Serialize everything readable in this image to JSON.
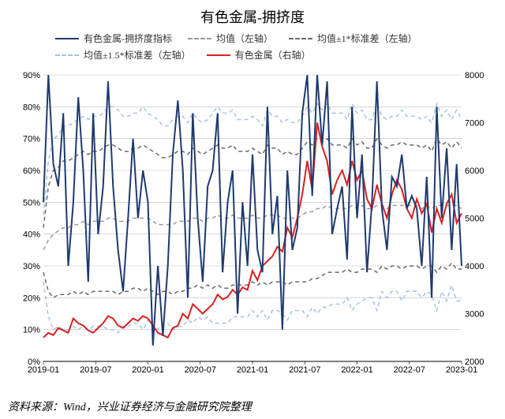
{
  "title": "有色金属-拥挤度",
  "source": "资料来源：Wind，兴业证券经济与金融研究院整理",
  "legend": {
    "items": [
      {
        "label": "有色金属-拥挤度指标",
        "color": "#1f3a6e",
        "dash": "solid",
        "width": 2
      },
      {
        "label": "均值（左轴）",
        "color": "#9a9a9a",
        "dash": "dashed",
        "width": 1.5
      },
      {
        "label": "均值±1*标准差（左轴）",
        "color": "#6a6a6a",
        "dash": "dashed",
        "width": 1.5
      },
      {
        "label": "均值±1.5*标准差（左轴）",
        "color": "#a8c3e0",
        "dash": "dashed",
        "width": 1.5
      },
      {
        "label": "有色金属（右轴）",
        "color": "#d92121",
        "dash": "solid",
        "width": 2
      }
    ]
  },
  "chart": {
    "type": "line",
    "background_color": "#ffffff",
    "grid_color": "#bfbfbf",
    "axis_color": "#000000",
    "left_axis": {
      "min": 0,
      "max": 90,
      "step": 10,
      "suffix": "%"
    },
    "right_axis": {
      "min": 2000,
      "max": 8000,
      "step": 1000
    },
    "x_labels": [
      "2019-01",
      "2019-07",
      "2020-01",
      "2020-07",
      "2021-01",
      "2021-07",
      "2022-01",
      "2022-07",
      "2023-01"
    ],
    "series": {
      "indicator": {
        "color": "#1f3a6e",
        "dash": "solid",
        "width": 2,
        "axis": "left",
        "values": [
          50,
          90,
          62,
          55,
          78,
          30,
          50,
          83,
          60,
          25,
          78,
          40,
          55,
          88,
          55,
          35,
          22,
          45,
          70,
          45,
          60,
          50,
          5,
          30,
          8,
          30,
          65,
          82,
          60,
          20,
          78,
          45,
          25,
          55,
          60,
          78,
          28,
          50,
          60,
          15,
          50,
          30,
          65,
          35,
          28,
          80,
          40,
          52,
          10,
          60,
          35,
          42,
          78,
          90,
          52,
          90,
          68,
          88,
          40,
          48,
          55,
          32,
          80,
          45,
          65,
          28,
          50,
          88,
          48,
          35,
          58,
          55,
          65,
          48,
          52,
          48,
          30,
          58,
          20,
          80,
          45,
          67,
          35,
          62,
          30
        ]
      },
      "mean": {
        "color": "#9a9a9a",
        "dash": "dashed",
        "width": 1.5,
        "axis": "left",
        "values": [
          35,
          38,
          40,
          41,
          42,
          42,
          43,
          43,
          44,
          43,
          44,
          44,
          44,
          45,
          45,
          44,
          44,
          44,
          45,
          45,
          45,
          45,
          44,
          43,
          43,
          43,
          43,
          44,
          44,
          44,
          45,
          45,
          44,
          45,
          45,
          46,
          45,
          45,
          46,
          45,
          45,
          45,
          46,
          45,
          45,
          46,
          46,
          46,
          45,
          45,
          45,
          45,
          46,
          47,
          47,
          48,
          48,
          49,
          48,
          48,
          48,
          48,
          49,
          48,
          49,
          48,
          48,
          49,
          49,
          48,
          49,
          49,
          49,
          49,
          49,
          49,
          48,
          49,
          48,
          49,
          49,
          49,
          49,
          49,
          48
        ]
      },
      "sd_upper": {
        "color": "#6a6a6a",
        "dash": "dashed",
        "width": 1.5,
        "axis": "left",
        "values": [
          42,
          55,
          60,
          61,
          63,
          63,
          64,
          65,
          66,
          65,
          66,
          66,
          67,
          68,
          68,
          67,
          66,
          66,
          67,
          67,
          68,
          67,
          66,
          65,
          64,
          64,
          65,
          66,
          66,
          65,
          67,
          66,
          65,
          66,
          67,
          68,
          67,
          67,
          68,
          66,
          66,
          66,
          67,
          66,
          65,
          68,
          67,
          67,
          65,
          66,
          65,
          65,
          67,
          69,
          68,
          70,
          69,
          70,
          68,
          68,
          68,
          67,
          70,
          68,
          69,
          67,
          67,
          70,
          68,
          67,
          68,
          68,
          69,
          68,
          68,
          68,
          67,
          68,
          66,
          70,
          68,
          69,
          67,
          69,
          67
        ]
      },
      "sd_lower": {
        "color": "#6a6a6a",
        "dash": "dashed",
        "width": 1.5,
        "axis": "left",
        "values": [
          28,
          22,
          20,
          21,
          21,
          21,
          22,
          21,
          22,
          21,
          22,
          22,
          22,
          22,
          22,
          21,
          22,
          22,
          23,
          23,
          22,
          23,
          22,
          21,
          22,
          22,
          21,
          22,
          22,
          23,
          23,
          24,
          23,
          24,
          23,
          24,
          23,
          23,
          24,
          24,
          24,
          24,
          25,
          24,
          25,
          24,
          25,
          25,
          25,
          24,
          25,
          25,
          25,
          25,
          26,
          26,
          27,
          28,
          28,
          28,
          28,
          29,
          28,
          28,
          29,
          29,
          29,
          28,
          30,
          29,
          30,
          30,
          29,
          30,
          30,
          30,
          29,
          30,
          30,
          28,
          30,
          29,
          31,
          29,
          29
        ]
      },
      "sd15_upper": {
        "color": "#a8c3e0",
        "dash": "dashed",
        "width": 1.5,
        "axis": "left",
        "values": [
          46,
          63,
          70,
          71,
          74,
          74,
          75,
          76,
          77,
          76,
          77,
          77,
          78,
          80,
          80,
          79,
          77,
          77,
          78,
          78,
          80,
          78,
          77,
          76,
          74,
          74,
          76,
          77,
          77,
          75,
          78,
          76,
          75,
          76,
          78,
          80,
          78,
          78,
          79,
          76,
          76,
          76,
          77,
          76,
          74,
          79,
          77,
          77,
          75,
          76,
          75,
          75,
          77,
          80,
          78,
          81,
          79,
          81,
          78,
          78,
          78,
          76,
          81,
          78,
          79,
          76,
          76,
          81,
          77,
          76,
          77,
          77,
          79,
          77,
          77,
          77,
          76,
          77,
          75,
          81,
          77,
          79,
          76,
          79,
          76
        ]
      },
      "sd15_lower": {
        "color": "#a8c3e0",
        "dash": "dashed",
        "width": 1.5,
        "axis": "left",
        "values": [
          25,
          14,
          10,
          11,
          10,
          10,
          11,
          10,
          11,
          10,
          11,
          11,
          11,
          10,
          10,
          9,
          11,
          11,
          12,
          12,
          10,
          13,
          11,
          10,
          12,
          12,
          10,
          11,
          11,
          13,
          12,
          14,
          13,
          14,
          12,
          12,
          12,
          12,
          14,
          14,
          14,
          14,
          16,
          14,
          16,
          13,
          16,
          16,
          15,
          13,
          16,
          16,
          16,
          14,
          17,
          15,
          17,
          17,
          18,
          18,
          18,
          20,
          16,
          18,
          19,
          20,
          20,
          16,
          22,
          20,
          22,
          22,
          19,
          22,
          22,
          22,
          20,
          22,
          21,
          16,
          22,
          19,
          24,
          19,
          19
        ]
      },
      "price": {
        "color": "#d92121",
        "dash": "solid",
        "width": 2,
        "axis": "right",
        "values": [
          2500,
          2600,
          2550,
          2700,
          2650,
          2600,
          2900,
          2800,
          2750,
          2650,
          2600,
          2700,
          2800,
          2950,
          2900,
          2750,
          2700,
          2800,
          2900,
          2850,
          2950,
          2900,
          2750,
          2600,
          2550,
          2500,
          2700,
          2750,
          3000,
          2900,
          3200,
          3100,
          3000,
          3100,
          3200,
          3400,
          3300,
          3350,
          3500,
          3400,
          3550,
          3500,
          3900,
          3700,
          4000,
          4100,
          4200,
          4400,
          4300,
          4800,
          4600,
          5000,
          5500,
          6200,
          5600,
          7000,
          6500,
          6200,
          5500,
          5800,
          6000,
          5700,
          6200,
          5800,
          6000,
          5400,
          5200,
          5700,
          5300,
          5000,
          5500,
          5800,
          5600,
          5200,
          5000,
          5400,
          5100,
          5300,
          4700,
          5200,
          4900,
          5300,
          5500,
          4900,
          5100
        ]
      }
    }
  }
}
